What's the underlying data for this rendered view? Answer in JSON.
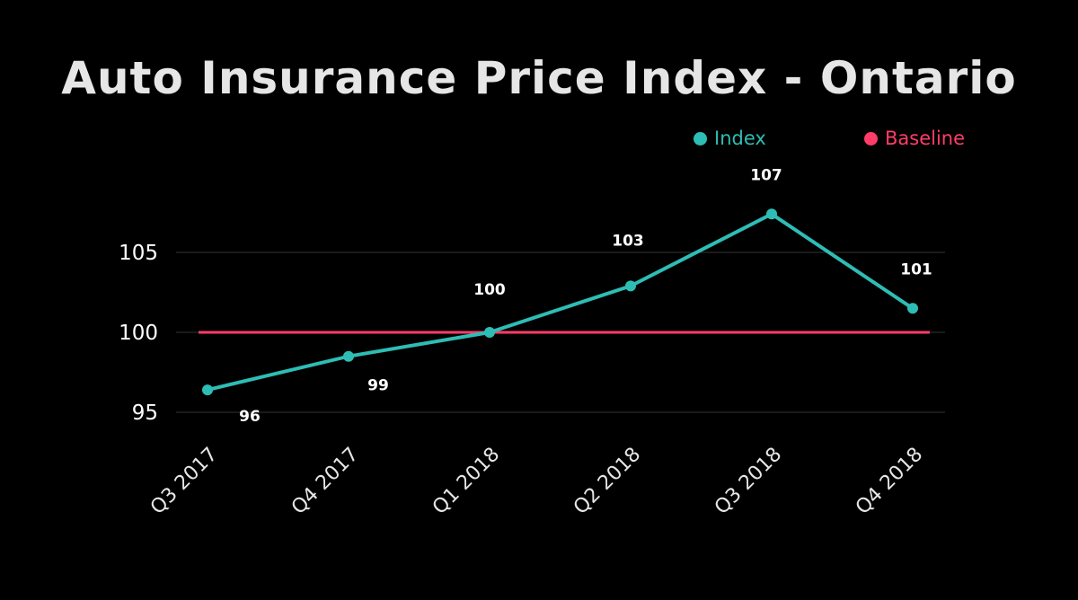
{
  "colors": {
    "background": "#000000",
    "index": "#2ebdb5",
    "baseline": "#ff3d68",
    "grid": "#333333",
    "title": "#e6e6e6"
  },
  "chart_data": {
    "type": "line",
    "title": "Auto Insurance Price Index - Ontario",
    "xlabel": "",
    "ylabel": "",
    "categories": [
      "Q3 2017",
      "Q4 2017",
      "Q1 2018",
      "Q2 2018",
      "Q3 2018",
      "Q4 2018"
    ],
    "series": [
      {
        "name": "Index",
        "color": "#2ebdb5",
        "values": [
          96.4,
          98.5,
          100,
          102.9,
          107.4,
          101.5
        ],
        "labels": [
          "96",
          "99",
          "100",
          "103",
          "107",
          "101"
        ]
      },
      {
        "name": "Baseline",
        "color": "#ff3d68",
        "values": [
          100,
          100,
          100,
          100,
          100,
          100
        ]
      }
    ],
    "yticks": [
      95,
      100,
      105
    ],
    "ytick_labels": [
      "95",
      "100",
      "105"
    ],
    "ylim": [
      95,
      107.5
    ],
    "grid": true,
    "legend": "top-right"
  }
}
